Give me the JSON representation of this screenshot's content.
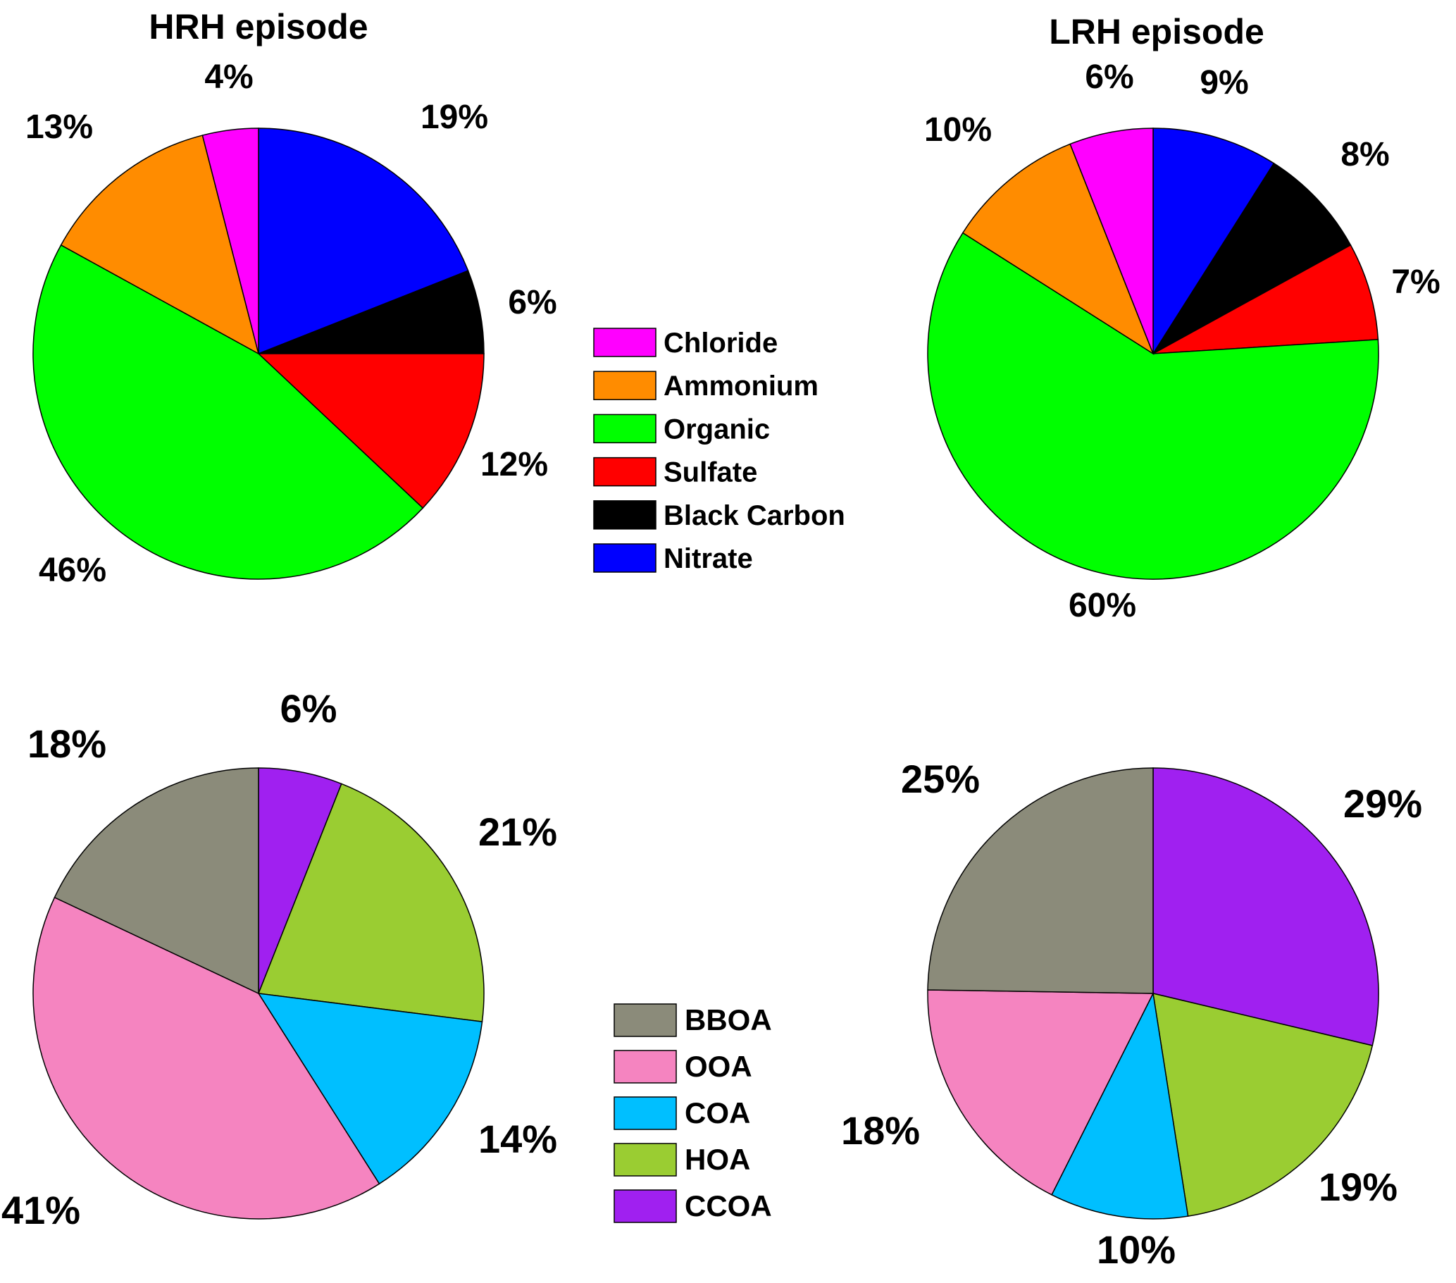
{
  "chart_data": [
    {
      "type": "pie",
      "title": "HRH episode",
      "legend": "legend_aerosol",
      "slices": [
        {
          "label": "Nitrate",
          "value": 19,
          "text": "19%",
          "color": "#0000FF"
        },
        {
          "label": "Black Carbon",
          "value": 6,
          "text": "6%",
          "color": "#000000"
        },
        {
          "label": "Sulfate",
          "value": 12,
          "text": "12%",
          "color": "#FF0000"
        },
        {
          "label": "Organic",
          "value": 46,
          "text": "46%",
          "color": "#00FF00"
        },
        {
          "label": "Ammonium",
          "value": 13,
          "text": "13%",
          "color": "#FF8C00"
        },
        {
          "label": "Chloride",
          "value": 4,
          "text": "4%",
          "color": "#FF00FF"
        }
      ]
    },
    {
      "type": "pie",
      "title": "LRH episode",
      "legend": "legend_aerosol",
      "slices": [
        {
          "label": "Nitrate",
          "value": 9,
          "text": "9%",
          "color": "#0000FF"
        },
        {
          "label": "Black Carbon",
          "value": 8,
          "text": "8%",
          "color": "#000000"
        },
        {
          "label": "Sulfate",
          "value": 7,
          "text": "7%",
          "color": "#FF0000"
        },
        {
          "label": "Organic",
          "value": 60,
          "text": "60%",
          "color": "#00FF00"
        },
        {
          "label": "Ammonium",
          "value": 10,
          "text": "10%",
          "color": "#FF8C00"
        },
        {
          "label": "Chloride",
          "value": 6,
          "text": "6%",
          "color": "#FF00FF"
        }
      ]
    },
    {
      "type": "pie",
      "title": "",
      "legend": "legend_oa",
      "slices": [
        {
          "label": "CCOA",
          "value": 6,
          "text": "6%",
          "color": "#A020F0"
        },
        {
          "label": "HOA",
          "value": 21,
          "text": "21%",
          "color": "#9ACD32"
        },
        {
          "label": "COA",
          "value": 14,
          "text": "14%",
          "color": "#00BFFF"
        },
        {
          "label": "OOA",
          "value": 41,
          "text": "41%",
          "color": "#F584C0"
        },
        {
          "label": "BBOA",
          "value": 18,
          "text": "18%",
          "color": "#8B8B7A"
        }
      ]
    },
    {
      "type": "pie",
      "title": "",
      "legend": "legend_oa",
      "slices": [
        {
          "label": "CCOA",
          "value": 29,
          "text": "29%",
          "color": "#A020F0"
        },
        {
          "label": "HOA",
          "value": 19,
          "text": "19%",
          "color": "#9ACD32"
        },
        {
          "label": "COA",
          "value": 10,
          "text": "10%",
          "color": "#00BFFF"
        },
        {
          "label": "OOA",
          "value": 18,
          "text": "18%",
          "color": "#F584C0"
        },
        {
          "label": "BBOA",
          "value": 25,
          "text": "25%",
          "color": "#8B8B7A"
        }
      ]
    }
  ],
  "legend_aerosol": [
    {
      "label": "Chloride",
      "color": "#FF00FF"
    },
    {
      "label": "Ammonium",
      "color": "#FF8C00"
    },
    {
      "label": "Organic",
      "color": "#00FF00"
    },
    {
      "label": "Sulfate",
      "color": "#FF0000"
    },
    {
      "label": "Black Carbon",
      "color": "#000000"
    },
    {
      "label": "Nitrate",
      "color": "#0000FF"
    }
  ],
  "legend_oa": [
    {
      "label": "BBOA",
      "color": "#8B8B7A"
    },
    {
      "label": "OOA",
      "color": "#F584C0"
    },
    {
      "label": "COA",
      "color": "#00BFFF"
    },
    {
      "label": "HOA",
      "color": "#9ACD32"
    },
    {
      "label": "CCOA",
      "color": "#A020F0"
    }
  ]
}
